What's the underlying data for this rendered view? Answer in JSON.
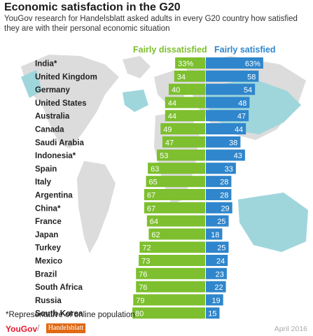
{
  "chart_data": {
    "type": "bar",
    "title": "Economic satisfaction in the G20",
    "subtitle": "YouGov research for Handelsblatt asked adults in every G20 country how satisfied they are with their personal economic situation",
    "categories": [
      "India*",
      "United Kingdom",
      "Germany",
      "United States",
      "Australia",
      "Canada",
      "Saudi Arabia",
      "Indonesia*",
      "Spain",
      "Italy",
      "Argentina",
      "China*",
      "France",
      "Japan",
      "Turkey",
      "Mexico",
      "Brazil",
      "South Africa",
      "Russia",
      "South Korea"
    ],
    "series": [
      {
        "name": "Fairly dissatisfied",
        "color": "#7dbf2e",
        "values": [
          33,
          34,
          40,
          44,
          44,
          49,
          47,
          53,
          63,
          65,
          67,
          67,
          64,
          62,
          72,
          73,
          76,
          76,
          79,
          80
        ]
      },
      {
        "name": "Fairly satisfied",
        "color": "#2f86cc",
        "values": [
          63,
          58,
          54,
          48,
          47,
          44,
          38,
          43,
          33,
          28,
          28,
          29,
          25,
          18,
          25,
          24,
          23,
          22,
          19,
          15
        ]
      }
    ],
    "value_labels": {
      "dissatisfied": [
        "33%",
        "34",
        "40",
        "44",
        "44",
        "49",
        "47",
        "53",
        "63",
        "65",
        "67",
        "67",
        "64",
        "62",
        "72",
        "73",
        "76",
        "76",
        "79",
        "80"
      ],
      "satisfied": [
        "63%",
        "58",
        "54",
        "48",
        "47",
        "44",
        "38",
        "43",
        "33",
        "28",
        "28",
        "29",
        "25",
        "18",
        "25",
        "24",
        "23",
        "22",
        "19",
        "15"
      ]
    },
    "layout": "diverging",
    "grid": false
  },
  "legend": {
    "dissatisfied": "Fairly dissatisfied",
    "satisfied": "Fairly satisfied"
  },
  "footnote": "*Representative of online population",
  "logos": {
    "yougov": "YouGov",
    "separator": "/",
    "handelsblatt": "Handelsblatt"
  },
  "date": "April 2016"
}
